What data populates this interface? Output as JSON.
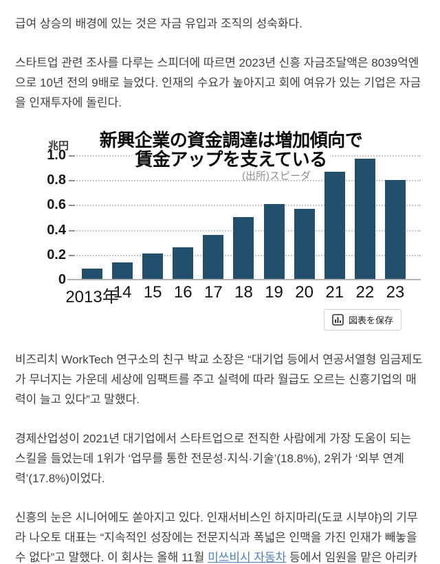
{
  "article": {
    "paragraph1": "급여 상승의 배경에 있는 것은 자금 유입과 조직의 성숙화다.",
    "paragraph2": "스타트업 관련 조사를 다루는 스피더에 따르면 2023년 신흥 자금조달액은 8039억엔으로 10년 전의 9배로 늘었다. 인재의 수요가 높아지고 회에 여유가 있는 기업은 자금을 인재투자에 돌린다.",
    "paragraph3": "비즈리치 WorkTech 연구소의 친구 박교 소장은 “대기업 등에서 연공서열형 임금제도가 무너지는 가운데 세상에 임팩트를 주고 실력에 따라 월급도 오르는 신흥기업의 매력이 늘고 있다”고 말했다.",
    "paragraph4": "경제산업성이 2021년 대기업에서 스타트업으로 전직한 사람에게 가장 도움이 되는 스킬을 들었는데 1위가 ‘업무를 통한 전문성·지식·기술’(18.8%), 2위가 ‘외부 연계력’(17.8%)이었다.",
    "paragraph5_before_link": "신흥의 눈은 시니어에도 쏟아지고 있다. 인재서비스인 하지마리(도쿄 시부야)의 기무라 나오토 대표는 “지속적인 성장에는 전문지식과 폭넓은 인맥을 가진 인재가 빼놓을 수 없다”고 말했다. 이 회사는 올해 11월 ",
    "paragraph5_link": "미쓰비시 자동차",
    "paragraph5_after_link": " 등에서 임원을 맡은 아리카",
    "text_color": "#3f3f3f",
    "link_color": "#4a7ebd"
  },
  "chart": {
    "save_button": {
      "label": "図表を保存",
      "icon": "bar-chart-icon"
    }
  },
  "chart_data": {
    "type": "bar",
    "title_line1": "新興企業の資金調達は増加傾向で",
    "title_line2": "賃金アップを支えている",
    "source": "(出所)スピーダ",
    "unit_label": "兆円",
    "ylabel": "兆円",
    "xlabel": "",
    "categories": [
      "2013年",
      "14",
      "15",
      "16",
      "17",
      "18",
      "19",
      "20",
      "21",
      "22",
      "23"
    ],
    "values": [
      0.09,
      0.14,
      0.21,
      0.26,
      0.36,
      0.5,
      0.61,
      0.57,
      0.87,
      0.97,
      0.8
    ],
    "ytick_labels": [
      "1.0",
      "0.8",
      "0.6",
      "0.4",
      "0.2",
      "0"
    ],
    "ylim": [
      0,
      1.0
    ],
    "grid": "dotted-horizontal",
    "legend": "none",
    "bar_color": "#224f6b"
  }
}
